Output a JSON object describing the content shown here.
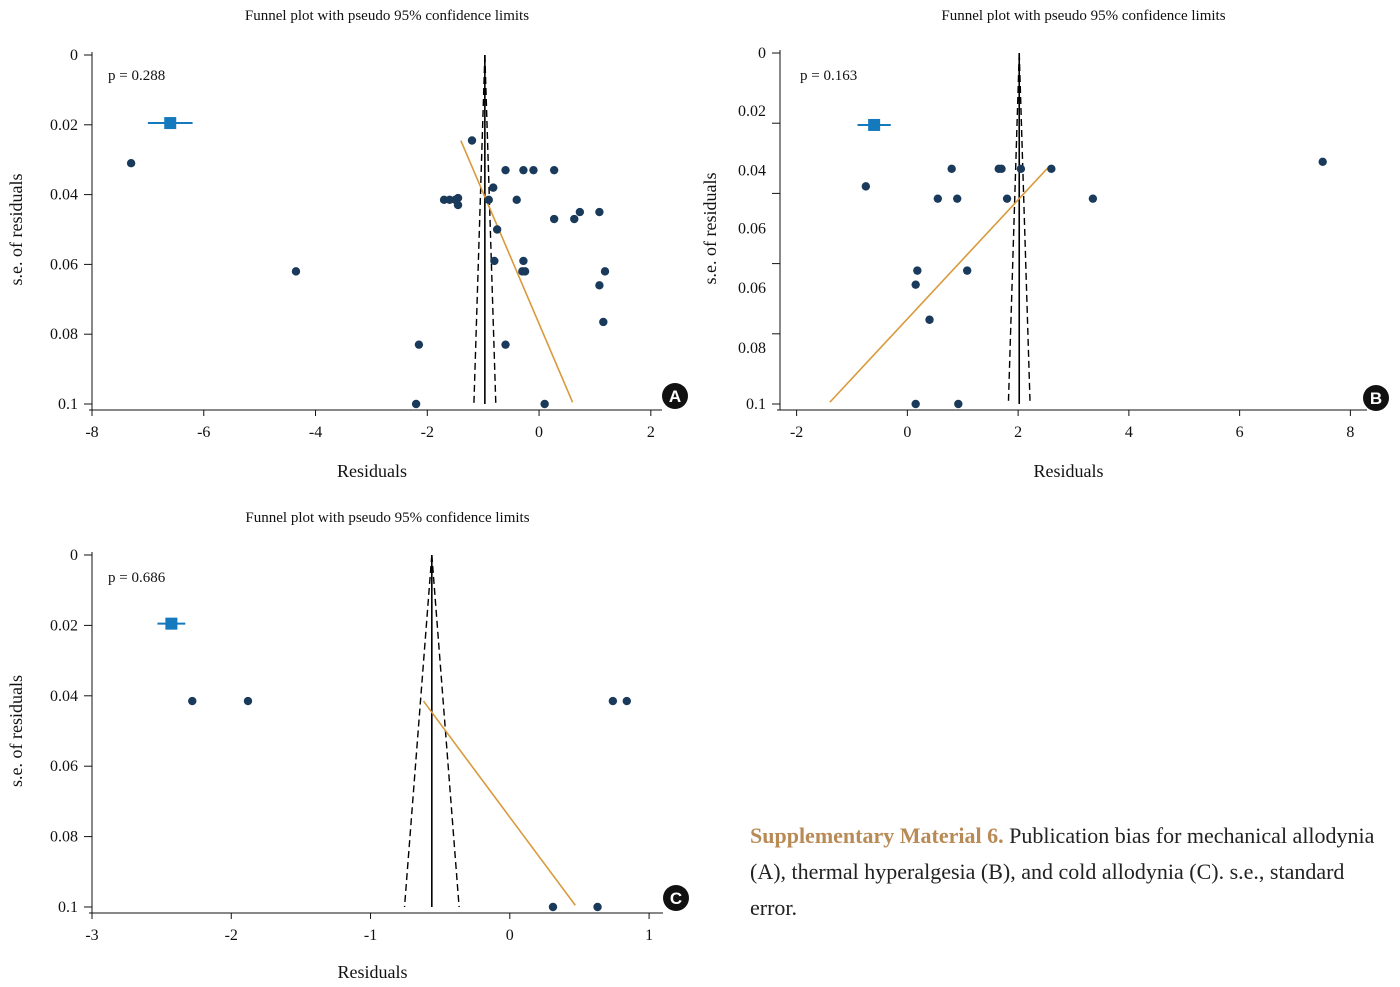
{
  "colors": {
    "point": "#1a3a5c",
    "summary": "#1479bd",
    "regression": "#d99a3c",
    "funnel": "#000000",
    "caption_label": "#b88a56",
    "badge": "#111111"
  },
  "chart_data": [
    {
      "type": "scatter",
      "panel": "A",
      "title": "Funnel plot with pseudo 95% confidence limits",
      "xlabel": "Residuals",
      "ylabel": "s.e. of residuals",
      "annotation": "p = 0.288",
      "xlim": [
        -8,
        2.2
      ],
      "ylim": [
        0.1,
        0
      ],
      "xticks": [
        -8,
        -6,
        -4,
        -2,
        0,
        2
      ],
      "yticks": [
        0,
        0.02,
        0.04,
        0.06,
        0.08,
        0.1
      ],
      "ytick_labels": [
        "0",
        "0.02",
        "0.04",
        "0.06",
        "0.08",
        "0.1"
      ],
      "funnel_center": -0.97,
      "summary_point": {
        "x": -6.6,
        "y": 0.0195,
        "halfwidth": 0.4
      },
      "regression_line": [
        [
          -1.4,
          0.0245
        ],
        [
          0.6,
          0.0995
        ]
      ],
      "points": [
        [
          -7.3,
          0.031
        ],
        [
          -4.35,
          0.062
        ],
        [
          -2.15,
          0.083
        ],
        [
          -2.2,
          0.1
        ],
        [
          -1.2,
          0.0245
        ],
        [
          -1.7,
          0.0415
        ],
        [
          -1.6,
          0.0415
        ],
        [
          -1.5,
          0.0415
        ],
        [
          -1.45,
          0.041
        ],
        [
          -1.45,
          0.043
        ],
        [
          -0.9,
          0.0415
        ],
        [
          -0.82,
          0.038
        ],
        [
          -0.75,
          0.05
        ],
        [
          -0.8,
          0.059
        ],
        [
          -0.6,
          0.033
        ],
        [
          -0.6,
          0.083
        ],
        [
          -0.4,
          0.0415
        ],
        [
          -0.28,
          0.033
        ],
        [
          -0.28,
          0.059
        ],
        [
          -0.3,
          0.062
        ],
        [
          -0.25,
          0.062
        ],
        [
          -0.1,
          0.033
        ],
        [
          0.1,
          0.1
        ],
        [
          0.27,
          0.033
        ],
        [
          0.27,
          0.047
        ],
        [
          0.63,
          0.047
        ],
        [
          0.73,
          0.045
        ],
        [
          1.08,
          0.045
        ],
        [
          1.08,
          0.066
        ],
        [
          1.15,
          0.0765
        ],
        [
          1.18,
          0.062
        ]
      ]
    },
    {
      "type": "scatter",
      "panel": "B",
      "title": "Funnel plot with pseudo 95% confidence limits",
      "xlabel": "Residuals",
      "ylabel": "s.e. of residuals",
      "annotation": "p = 0.163",
      "xlim": [
        -2.3,
        8.3
      ],
      "ylim": [
        0.1,
        0
      ],
      "xticks": [
        -2,
        0,
        2,
        4,
        6,
        8
      ],
      "yticks": [
        0,
        0.02,
        0.04,
        0.06,
        0.08,
        0.1
      ],
      "ytick_labels": [
        "0",
        "0.02",
        "0.04",
        "0.06",
        "0.06",
        "0.08",
        "0.1"
      ],
      "ytick_label_positions": [
        0,
        0.0165,
        0.0335,
        0.05,
        0.067,
        0.084,
        0.1
      ],
      "funnel_center": 2.02,
      "summary_point": {
        "x": -0.6,
        "y": 0.0205,
        "halfwidth": 0.3
      },
      "regression_line": [
        [
          -1.4,
          0.0995
        ],
        [
          2.55,
          0.0325
        ]
      ],
      "points": [
        [
          -0.75,
          0.038
        ],
        [
          0.15,
          0.066
        ],
        [
          0.15,
          0.1
        ],
        [
          0.18,
          0.062
        ],
        [
          0.4,
          0.076
        ],
        [
          0.55,
          0.0415
        ],
        [
          0.8,
          0.033
        ],
        [
          0.9,
          0.0415
        ],
        [
          0.92,
          0.1
        ],
        [
          1.08,
          0.062
        ],
        [
          1.65,
          0.033
        ],
        [
          1.7,
          0.033
        ],
        [
          1.8,
          0.0415
        ],
        [
          2.05,
          0.033
        ],
        [
          2.6,
          0.033
        ],
        [
          3.35,
          0.0415
        ],
        [
          7.5,
          0.031
        ]
      ]
    },
    {
      "type": "scatter",
      "panel": "C",
      "title": "Funnel plot with pseudo 95% confidence limits",
      "xlabel": "Residuals",
      "ylabel": "s.e. of residuals",
      "annotation": "p = 0.686",
      "xlim": [
        -3,
        1.1
      ],
      "ylim": [
        0.1,
        0
      ],
      "xticks": [
        -3,
        -2,
        -1,
        0,
        1
      ],
      "yticks": [
        0,
        0.02,
        0.04,
        0.06,
        0.08,
        0.1
      ],
      "ytick_labels": [
        "0",
        "0.02",
        "0.04",
        "0.06",
        "0.08",
        "0.1"
      ],
      "funnel_center": -0.56,
      "summary_point": {
        "x": -2.43,
        "y": 0.0195,
        "halfwidth": 0.1
      },
      "regression_line": [
        [
          -0.62,
          0.0415
        ],
        [
          0.47,
          0.0995
        ]
      ],
      "points": [
        [
          -2.28,
          0.0415
        ],
        [
          -1.88,
          0.0415
        ],
        [
          0.31,
          0.1
        ],
        [
          0.63,
          0.1
        ],
        [
          0.74,
          0.0415
        ],
        [
          0.84,
          0.0415
        ]
      ]
    }
  ],
  "caption": {
    "label": "Supplementary Material 6.",
    "text": " Publication bias for mechanical allodynia (A), thermal hyperalgesia (B), and cold allodynia (C). s.e., standard error."
  }
}
